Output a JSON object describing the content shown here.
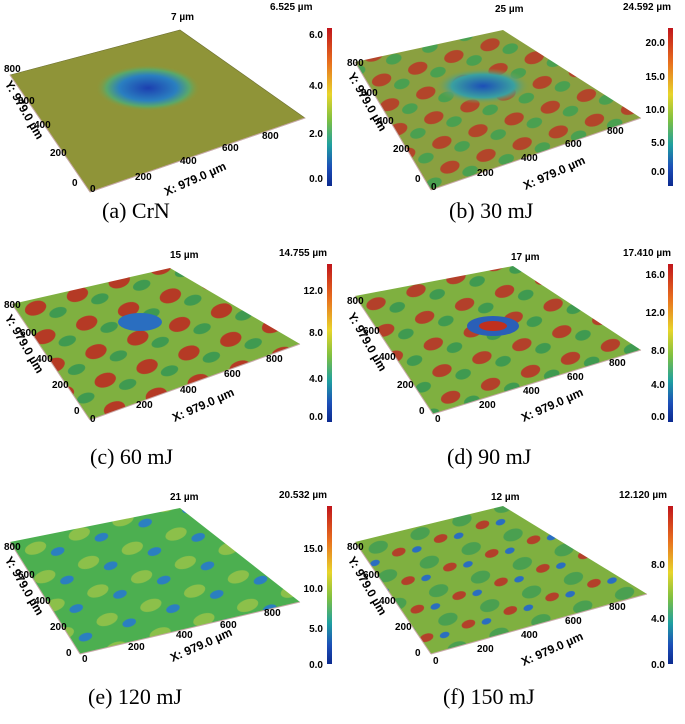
{
  "panels": [
    {
      "caption": "(a) CrN",
      "top_label": "7 µm",
      "zmax": "6.525 µm",
      "ticks": [
        "6.0",
        "4.0",
        "2.0",
        "0.0"
      ],
      "x_label": "X: 979.0 µm",
      "y_label": "Y: 979.0 µm",
      "x_ticks": [
        "0",
        "200",
        "400",
        "600",
        "800"
      ],
      "y_ticks": [
        "800",
        "600",
        "400",
        "200",
        "0"
      ],
      "surface": "flat-crater"
    },
    {
      "caption": "(b) 30 mJ",
      "top_label": "25 µm",
      "zmax": "24.592 µm",
      "ticks": [
        "20.0",
        "15.0",
        "10.0",
        "5.0",
        "0.0"
      ],
      "x_label": "X: 979.0 µm",
      "y_label": "Y: 979.0 µm",
      "x_ticks": [
        "0",
        "200",
        "400",
        "600",
        "800"
      ],
      "y_ticks": [
        "800",
        "600",
        "400",
        "200",
        "0"
      ],
      "surface": "textured-crater"
    },
    {
      "caption": "(c) 60 mJ",
      "top_label": "15 µm",
      "zmax": "14.755 µm",
      "ticks": [
        "12.0",
        "8.0",
        "4.0",
        "0.0"
      ],
      "x_label": "X: 979.0 µm",
      "y_label": "Y: 979.0 µm",
      "x_ticks": [
        "0",
        "200",
        "400",
        "600",
        "800"
      ],
      "y_ticks": [
        "800",
        "600",
        "400",
        "200",
        "0"
      ],
      "surface": "textured"
    },
    {
      "caption": "(d) 90 mJ",
      "top_label": "17 µm",
      "zmax": "17.410 µm",
      "ticks": [
        "16.0",
        "12.0",
        "8.0",
        "4.0",
        "0.0"
      ],
      "x_label": "X: 979.0 µm",
      "y_label": "Y: 979.0 µm",
      "x_ticks": [
        "0",
        "200",
        "400",
        "600",
        "800"
      ],
      "y_ticks": [
        "800",
        "600",
        "400",
        "200",
        "0"
      ],
      "surface": "textured"
    },
    {
      "caption": "(e) 120 mJ",
      "top_label": "21 µm",
      "zmax": "20.532 µm",
      "ticks": [
        "15.0",
        "10.0",
        "5.0",
        "0.0"
      ],
      "x_label": "X: 979.0 µm",
      "y_label": "Y: 979.0 µm",
      "x_ticks": [
        "0",
        "200",
        "400",
        "600",
        "800"
      ],
      "y_ticks": [
        "800",
        "600",
        "400",
        "200",
        "0"
      ],
      "surface": "textured-green"
    },
    {
      "caption": "(f) 150 mJ",
      "top_label": "12 µm",
      "zmax": "12.120 µm",
      "ticks": [
        "8.0",
        "4.0",
        "0.0"
      ],
      "x_label": "X: 979.0 µm",
      "y_label": "Y: 979.0 µm",
      "x_ticks": [
        "0",
        "200",
        "400",
        "600",
        "800"
      ],
      "y_ticks": [
        "800",
        "600",
        "400",
        "200",
        "0"
      ],
      "surface": "textured-green"
    }
  ],
  "colors": {
    "high": "#c0151b",
    "mid": "#7fc040",
    "low": "#1c4fb8",
    "base": "#9a9a3a"
  }
}
